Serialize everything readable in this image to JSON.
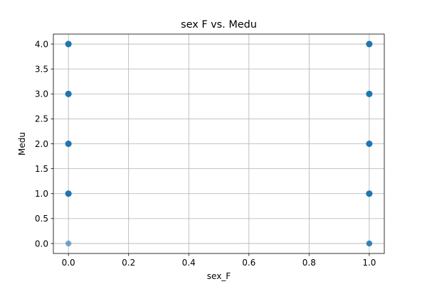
{
  "chart_data": {
    "type": "scatter",
    "title": "sex F vs. Medu",
    "xlabel": "sex_F",
    "ylabel": "Medu",
    "xlim": [
      -0.05,
      1.05
    ],
    "ylim": [
      -0.2,
      4.2
    ],
    "xticks": [
      0.0,
      0.2,
      0.4,
      0.6,
      0.8,
      1.0
    ],
    "xtick_labels": [
      "0.0",
      "0.2",
      "0.4",
      "0.6",
      "0.8",
      "1.0"
    ],
    "yticks": [
      0.0,
      0.5,
      1.0,
      1.5,
      2.0,
      2.5,
      3.0,
      3.5,
      4.0
    ],
    "ytick_labels": [
      "0.0",
      "0.5",
      "1.0",
      "1.5",
      "2.0",
      "2.5",
      "3.0",
      "3.5",
      "4.0"
    ],
    "grid": true,
    "point_color": "#1f77b4",
    "points": [
      {
        "x": 0,
        "y": 0,
        "density": "low"
      },
      {
        "x": 0,
        "y": 1,
        "density": "high"
      },
      {
        "x": 0,
        "y": 2,
        "density": "high"
      },
      {
        "x": 0,
        "y": 3,
        "density": "high"
      },
      {
        "x": 0,
        "y": 4,
        "density": "high"
      },
      {
        "x": 1,
        "y": 0,
        "density": "medium"
      },
      {
        "x": 1,
        "y": 1,
        "density": "high"
      },
      {
        "x": 1,
        "y": 2,
        "density": "high"
      },
      {
        "x": 1,
        "y": 3,
        "density": "high"
      },
      {
        "x": 1,
        "y": 4,
        "density": "high"
      }
    ]
  }
}
